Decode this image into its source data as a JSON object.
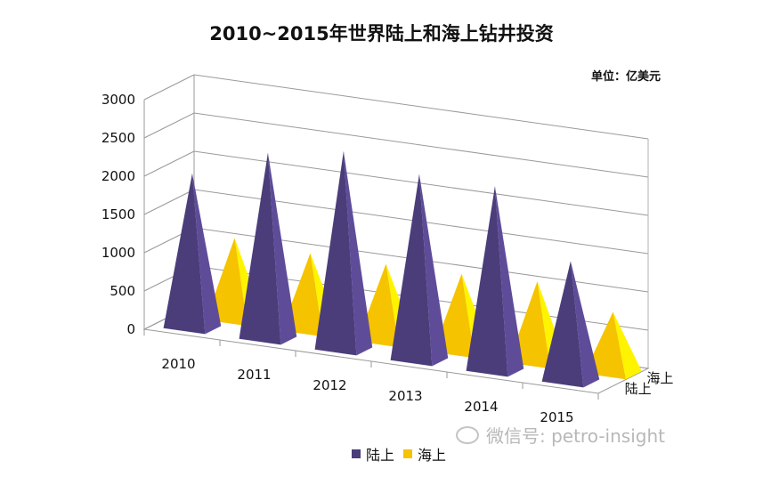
{
  "chart_data": {
    "type": "bar",
    "title": "2010~2015年世界陆上和海上钻井投资",
    "unit": "单位：亿美元",
    "categories": [
      "2010",
      "2011",
      "2012",
      "2013",
      "2014",
      "2015"
    ],
    "series": [
      {
        "name": "陆上",
        "values": [
          2010,
          2420,
          2580,
          2420,
          2400,
          1560
        ],
        "color": "#4b3d7a"
      },
      {
        "name": "海上",
        "values": [
          1060,
          1000,
          1000,
          1010,
          1050,
          790
        ],
        "color": "#f5c300"
      }
    ],
    "yticks": [
      0,
      500,
      1000,
      1500,
      2000,
      2500,
      3000
    ],
    "ylim": [
      0,
      3000
    ],
    "depth_labels": [
      "海上",
      "陆上"
    ],
    "grid": true,
    "legend_position": "bottom"
  },
  "watermark": {
    "text": "微信号: petro-insight"
  }
}
